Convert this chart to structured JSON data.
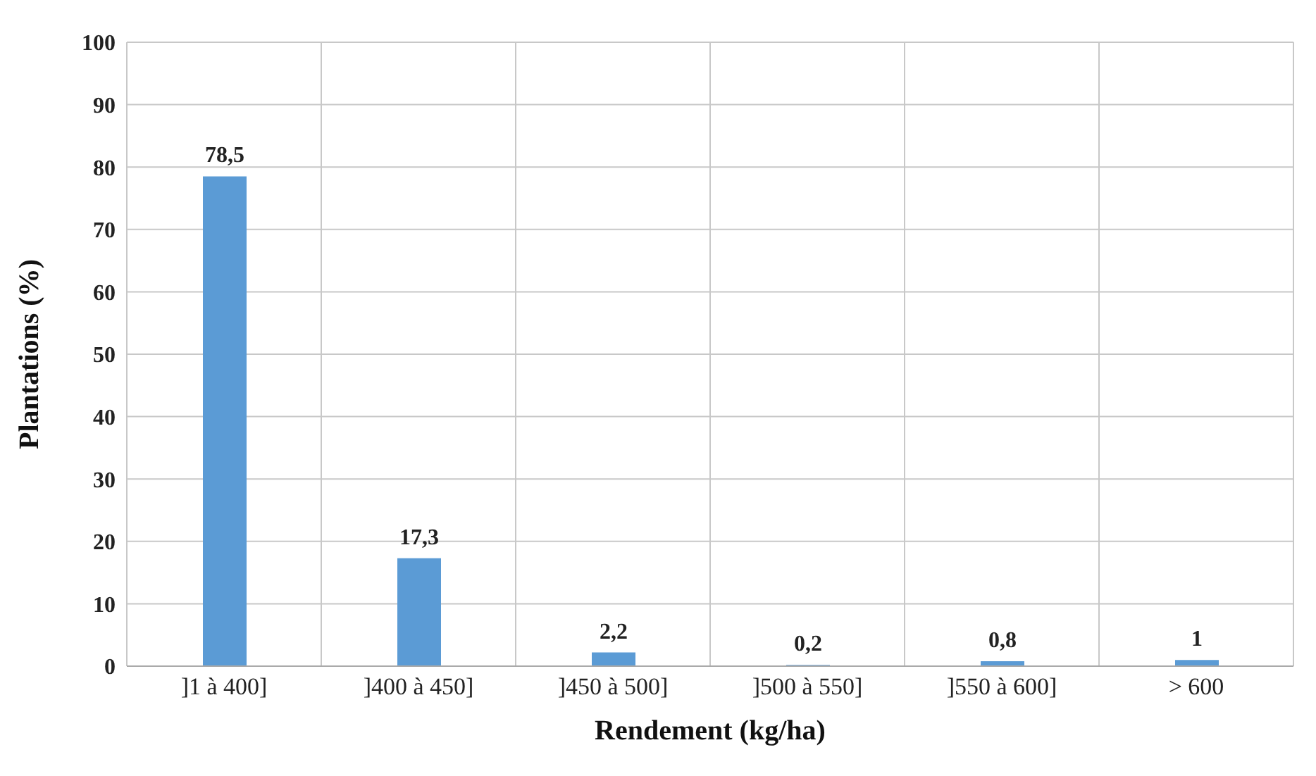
{
  "chart_data": {
    "type": "bar",
    "xlabel": "Rendement (kg/ha)",
    "ylabel": "Plantations (%)",
    "categories": [
      "]1 à 400]",
      "]400 à 450]",
      "]450 à 500]",
      "]500 à 550]",
      "]550 à 600]",
      "> 600"
    ],
    "values": [
      78.5,
      17.3,
      2.2,
      0.2,
      0.8,
      1
    ],
    "value_labels": [
      "78,5",
      "17,3",
      "2,2",
      "0,2",
      "0,8",
      "1"
    ],
    "color": "#5b9bd5",
    "ylim": [
      0,
      100
    ],
    "yticks": [
      0,
      10,
      20,
      30,
      40,
      50,
      60,
      70,
      80,
      90,
      100
    ],
    "grid": true
  }
}
